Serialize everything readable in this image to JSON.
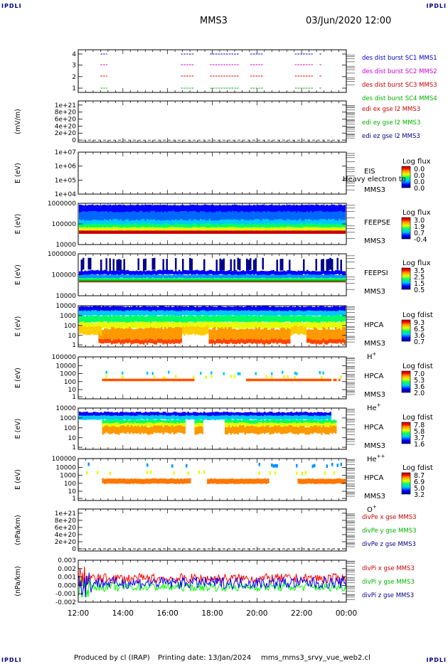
{
  "corners": {
    "tl": "IPDLI",
    "tr": "IPDLI",
    "bl": "IPDLI",
    "br": "IPDLI"
  },
  "header": {
    "mission": "MMS3",
    "datetime": "03/Jun/2020 12:00"
  },
  "footer": {
    "producer": "Produced by cl (IRAP)",
    "printing": "Printing date: 13/Jan/2024",
    "file": "mms_mms3_srvy_vue_web2.cl"
  },
  "x_axis": {
    "ticks": [
      "12:00",
      "14:00",
      "16:00",
      "18:00",
      "20:00",
      "22:00",
      "00:00"
    ]
  },
  "colors": {
    "blue": "#0000cc",
    "magenta": "#cc00cc",
    "red": "#cc0000",
    "green": "#00b000",
    "navy": "#00008b"
  },
  "chart_data": [
    {
      "type": "line",
      "panel": "burst availability",
      "yticks": [
        "1",
        "2",
        "3",
        "4"
      ],
      "series": [
        {
          "name": "des dist burst SC1 MMS1",
          "level": 4
        },
        {
          "name": "des dist burst SC2 MMS2",
          "level": 3
        },
        {
          "name": "des dist burst SC3 MMS3",
          "level": 2
        },
        {
          "name": "des dist burst SC4 MMS4",
          "level": 1
        }
      ],
      "intervals_hours": [
        [
          13.0,
          13.3
        ],
        [
          16.6,
          17.2
        ],
        [
          17.9,
          19.2
        ],
        [
          19.7,
          20.3
        ],
        [
          21.7,
          22.5
        ],
        [
          22.8,
          22.9
        ]
      ]
    },
    {
      "type": "line",
      "panel": "EDI E field",
      "ylabel": "(mV/m)",
      "yticks": [
        "0",
        "2e+20",
        "4e+20",
        "6e+20",
        "8e+20",
        "1e+21"
      ],
      "series": [
        {
          "name": "edi ex gse l2 MMS3"
        },
        {
          "name": "edi ey gse l2 MMS3"
        },
        {
          "name": "edi ez gse l2 MMS3"
        }
      ]
    },
    {
      "type": "heatmap",
      "panel": "EIS",
      "ylabel": "E (eV)",
      "yticks": [
        "1e+04",
        "1e+05",
        "1e+06",
        "1e+07"
      ],
      "instrument": "EIS",
      "overlay": "Heavy electron to",
      "sc": "MMS3",
      "cbar_title": "Log flux",
      "cbar_ticks": [
        "0.0",
        "0.0",
        "0.0",
        "0.0"
      ]
    },
    {
      "type": "heatmap",
      "panel": "FEEPSE",
      "ylabel": "E (eV)",
      "yticks": [
        "10000",
        "100000",
        "1000000"
      ],
      "instrument": "FEEPSE",
      "sc": "MMS3",
      "cbar_title": "Log flux",
      "cbar_ticks": [
        "3.0",
        "1.9",
        "0.7",
        "-0.4"
      ]
    },
    {
      "type": "heatmap",
      "panel": "FEEPSI",
      "ylabel": "E (eV)",
      "yticks": [
        "10000",
        "100000",
        "1000000"
      ],
      "instrument": "FEEPSI",
      "sc": "MMS3",
      "cbar_title": "Log flux",
      "cbar_ticks": [
        "3.5",
        "2.5",
        "1.5",
        "0.5"
      ]
    },
    {
      "type": "heatmap",
      "panel": "HPCA H+",
      "ylabel": "E (eV)",
      "yticks": [
        "1",
        "10",
        "100",
        "1000",
        "10000"
      ],
      "instrument": "HPCA",
      "sc": "MMS3",
      "species": "H",
      "charge": "+",
      "cbar_title": "Log fdist",
      "cbar_ticks": [
        "9.3",
        "6.5",
        "3.6",
        "0.7"
      ]
    },
    {
      "type": "heatmap",
      "panel": "HPCA He+",
      "ylabel": "E (eV)",
      "yticks": [
        "1",
        "10",
        "100",
        "1000",
        "10000",
        "100000"
      ],
      "instrument": "HPCA",
      "sc": "MMS3",
      "species": "He",
      "charge": "+",
      "cbar_title": "Log fdist",
      "cbar_ticks": [
        "7.0",
        "5.3",
        "3.6",
        "2.0"
      ]
    },
    {
      "type": "heatmap",
      "panel": "HPCA He++",
      "ylabel": "E (eV)",
      "yticks": [
        "1",
        "10",
        "100",
        "1000",
        "10000"
      ],
      "instrument": "HPCA",
      "sc": "MMS3",
      "species": "He",
      "charge": "++",
      "cbar_title": "Log fdist",
      "cbar_ticks": [
        "7.8",
        "5.8",
        "3.7",
        "1.6"
      ]
    },
    {
      "type": "heatmap",
      "panel": "HPCA O+",
      "ylabel": "E (eV)",
      "yticks": [
        "1",
        "10",
        "100",
        "1000",
        "10000",
        "100000"
      ],
      "instrument": "HPCA",
      "sc": "MMS3",
      "species": "O",
      "charge": "+",
      "cbar_title": "Log fdist",
      "cbar_ticks": [
        "8.7",
        "6.9",
        "5.0",
        "3.2"
      ]
    },
    {
      "type": "line",
      "panel": "divPe",
      "ylabel": "(nPa/km)",
      "yticks": [
        "0",
        "2e+20",
        "4e+20",
        "6e+20",
        "8e+20",
        "1e+21"
      ],
      "series": [
        {
          "name": "divPe x gse MMS3"
        },
        {
          "name": "divPe y gse MMS3"
        },
        {
          "name": "divPe z gse MMS3"
        }
      ]
    },
    {
      "type": "line",
      "panel": "divPi",
      "ylabel": "(nPa/km)",
      "ylim": [
        -0.002,
        0.003
      ],
      "yticks": [
        "-0.002",
        "-0.001",
        "0.000",
        "0.001",
        "0.002",
        "0.003"
      ],
      "series": [
        {
          "name": "divPi x gse MMS3",
          "mean": 0.0008
        },
        {
          "name": "divPi y gse MMS3",
          "mean": -0.0002
        },
        {
          "name": "divPi z gse MMS3",
          "mean": 0.0003
        }
      ]
    }
  ]
}
